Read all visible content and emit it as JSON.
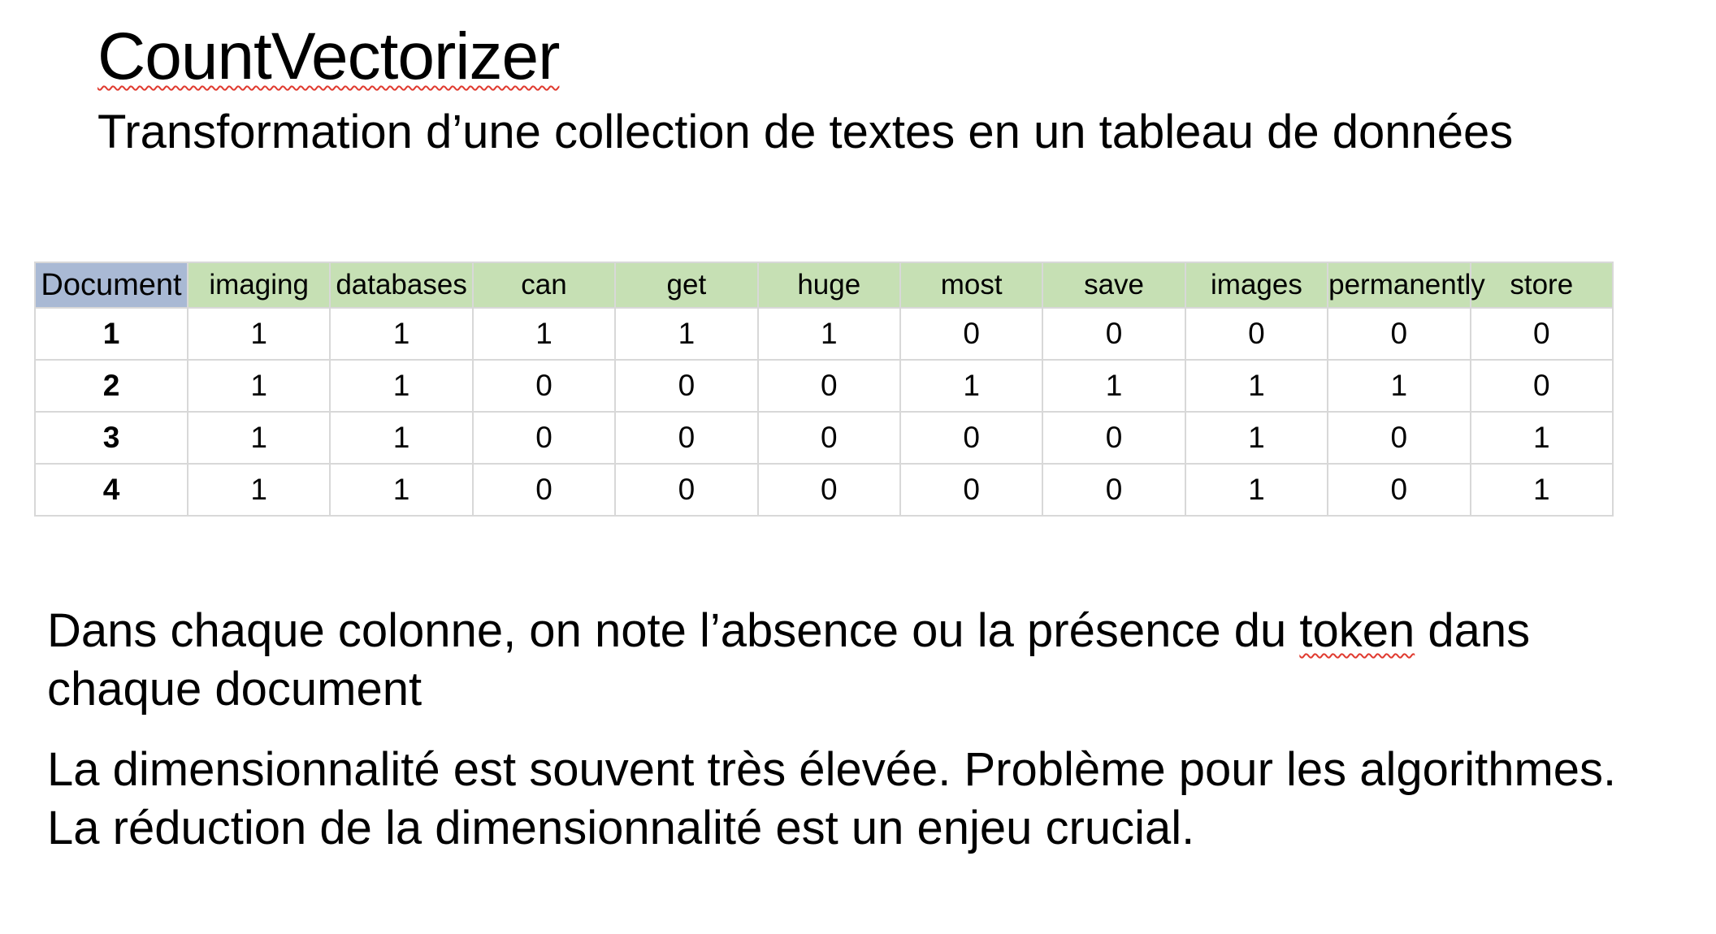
{
  "slide": {
    "title": "CountVectorizer",
    "subtitle": "Transformation d’une collection de textes en un tableau de données"
  },
  "table": {
    "first_header": "Document",
    "headers": [
      "imaging",
      "databases",
      "can",
      "get",
      "huge",
      "most",
      "save",
      "images",
      "permanently",
      "store"
    ],
    "rows": [
      {
        "doc": "1",
        "values": [
          "1",
          "1",
          "1",
          "1",
          "1",
          "0",
          "0",
          "0",
          "0",
          "0"
        ]
      },
      {
        "doc": "2",
        "values": [
          "1",
          "1",
          "0",
          "0",
          "0",
          "1",
          "1",
          "1",
          "1",
          "0"
        ]
      },
      {
        "doc": "3",
        "values": [
          "1",
          "1",
          "0",
          "0",
          "0",
          "0",
          "0",
          "1",
          "0",
          "1"
        ]
      },
      {
        "doc": "4",
        "values": [
          "1",
          "1",
          "0",
          "0",
          "0",
          "0",
          "0",
          "1",
          "0",
          "1"
        ]
      }
    ],
    "colors": {
      "document_header_bg": "#a9b9d4",
      "token_header_bg": "#c6e0b4",
      "grid_line": "#d8d8d8"
    }
  },
  "paragraphs": {
    "p1_before": "Dans chaque colonne, on note l’absence ou la présence du ",
    "p1_token": "token",
    "p1_after": " dans chaque document",
    "p2": "La dimensionnalité est souvent très élevée. Problème pour les algorithmes. La réduction de la dimensionnalité est un enjeu crucial."
  },
  "spellcheck_underline_color": "#e03a2f"
}
